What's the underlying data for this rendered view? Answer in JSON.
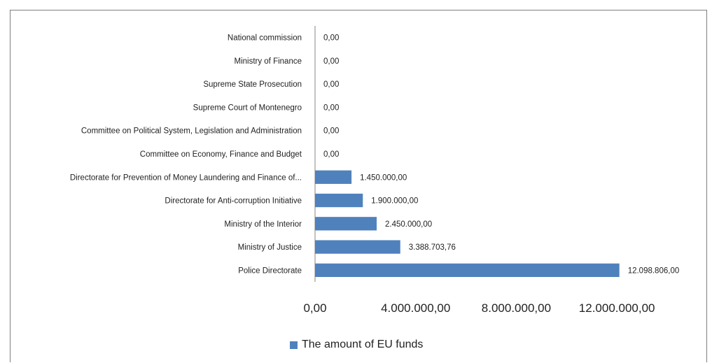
{
  "chart_data": {
    "type": "bar",
    "orientation": "horizontal",
    "categories": [
      "National commission",
      "Ministry of Finance",
      "Supreme State Prosecution",
      "Supreme Court of Montenegro",
      "Committee on Political System, Legislation and Administration",
      "Committee on Economy, Finance and Budget",
      "Directorate for Prevention of Money Laundering and Finance of...",
      "Directorate for Anti-corruption Initiative",
      "Ministry of the Interior",
      "Ministry of Justice",
      "Police Directorate"
    ],
    "series": [
      {
        "name": "The amount of EU funds",
        "values": [
          0,
          0,
          0,
          0,
          0,
          0,
          1450000,
          1900000,
          2450000,
          3388703.76,
          12098806
        ],
        "labels": [
          "0,00",
          "0,00",
          "0,00",
          "0,00",
          "0,00",
          "0,00",
          "1.450.000,00",
          "1.900.000,00",
          "2.450.000,00",
          "3.388.703,76",
          "12.098.806,00"
        ]
      }
    ],
    "xlim": [
      0,
      14000000
    ],
    "xticks": [
      0,
      4000000,
      8000000,
      12000000
    ],
    "xtick_labels": [
      "0,00",
      "4.000.000,00",
      "8.000.000,00",
      "12.000.000,00"
    ],
    "title": "",
    "xlabel": "",
    "ylabel": "",
    "grid": false,
    "legend_position": "bottom",
    "colors": {
      "bar": "#4f81bd",
      "axis": "#868686"
    }
  }
}
